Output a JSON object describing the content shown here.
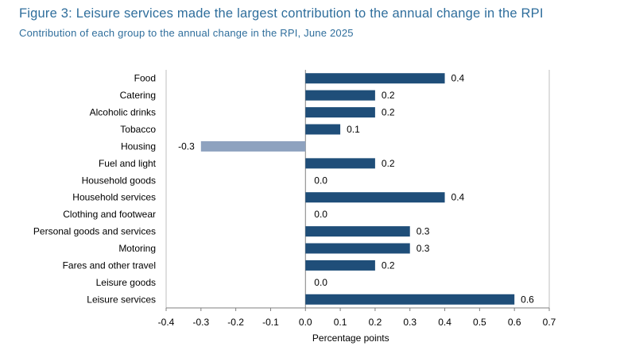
{
  "title": "Figure 3: Leisure services made the largest contribution to the annual change in the RPI",
  "subtitle": "Contribution of each group to the annual change in the RPI, June 2025",
  "colors": {
    "positive": "#1f4e79",
    "negative": "#8ea2bf",
    "title": "#2f6e9c"
  },
  "chart_data": {
    "type": "bar",
    "orientation": "horizontal",
    "categories": [
      "Food",
      "Catering",
      "Alcoholic drinks",
      "Tobacco",
      "Housing",
      "Fuel and light",
      "Household goods",
      "Household services",
      "Clothing and footwear",
      "Personal goods and services",
      "Motoring",
      "Fares and other travel",
      "Leisure goods",
      "Leisure services"
    ],
    "values": [
      0.4,
      0.2,
      0.2,
      0.1,
      -0.3,
      0.2,
      0.0,
      0.4,
      0.0,
      0.3,
      0.3,
      0.2,
      0.0,
      0.6
    ],
    "data_labels": [
      "0.4",
      "0.2",
      "0.2",
      "0.1",
      "-0.3",
      "0.2",
      "0.0",
      "0.4",
      "0.0",
      "0.3",
      "0.3",
      "0.2",
      "0.0",
      "0.6"
    ],
    "xlabel": "Percentage points",
    "ylabel": "",
    "xlim": [
      -0.4,
      0.7
    ],
    "xticks": [
      -0.4,
      -0.3,
      -0.2,
      -0.1,
      0.0,
      0.1,
      0.2,
      0.3,
      0.4,
      0.5,
      0.6,
      0.7
    ],
    "xtick_labels": [
      "-0.4",
      "-0.3",
      "-0.2",
      "-0.1",
      "0.0",
      "0.1",
      "0.2",
      "0.3",
      "0.4",
      "0.5",
      "0.6",
      "0.7"
    ],
    "grid": false,
    "legend": "none"
  }
}
